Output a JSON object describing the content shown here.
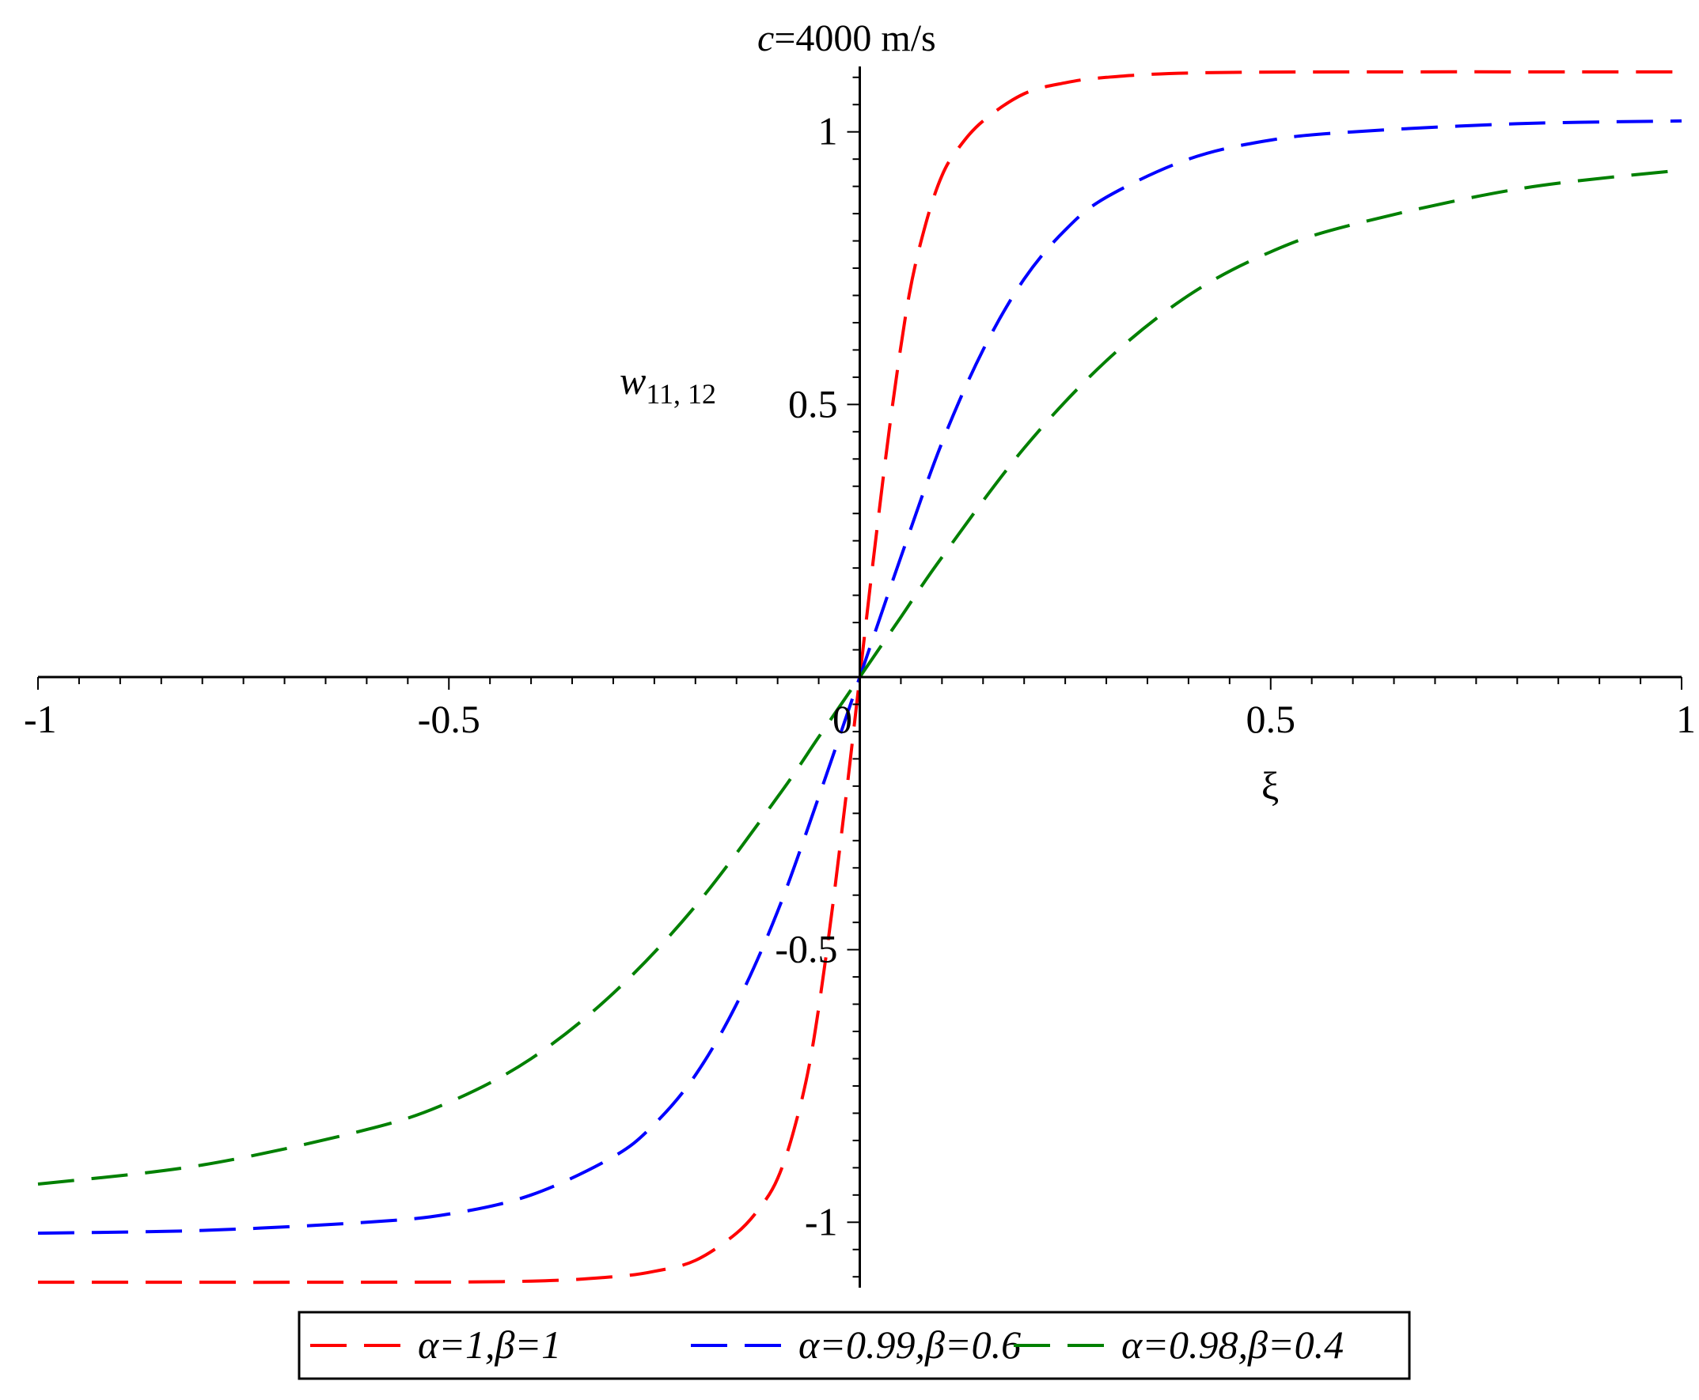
{
  "chart_data": {
    "type": "line",
    "title_italic": "c",
    "title_rest": "=4000 m/s",
    "xlabel": "ξ",
    "ylabel_main": "w",
    "ylabel_sub": "11, 12",
    "xlim": [
      -1,
      1
    ],
    "ylim": [
      -1.12,
      1.12
    ],
    "xticks": [
      {
        "value": -1,
        "label": "-1"
      },
      {
        "value": -0.5,
        "label": "-0.5"
      },
      {
        "value": 0,
        "label": "0"
      },
      {
        "value": 0.5,
        "label": "0.5"
      },
      {
        "value": 1,
        "label": "1"
      }
    ],
    "yticks": [
      {
        "value": -1,
        "label": "-1"
      },
      {
        "value": -0.5,
        "label": "-0.5"
      },
      {
        "value": 0.5,
        "label": "0.5"
      },
      {
        "value": 1,
        "label": "1"
      }
    ],
    "grid": false,
    "legend_position": "bottom-center",
    "series": [
      {
        "name": "α=1,β=1",
        "color": "#ff0000",
        "dash": "long-dash",
        "x": [
          -1,
          -0.6,
          -0.4,
          -0.3,
          -0.25,
          -0.2,
          -0.15,
          -0.12,
          -0.1,
          -0.08,
          -0.06,
          -0.04,
          -0.02,
          0,
          0.02,
          0.04,
          0.06,
          0.08,
          0.1,
          0.12,
          0.15,
          0.2,
          0.25,
          0.3,
          0.4,
          0.6,
          1
        ],
        "values": [
          -1.11,
          -1.11,
          -1.108,
          -1.1,
          -1.09,
          -1.07,
          -1.02,
          -0.97,
          -0.92,
          -0.83,
          -0.7,
          -0.5,
          -0.26,
          0,
          0.26,
          0.5,
          0.7,
          0.83,
          0.92,
          0.97,
          1.02,
          1.07,
          1.09,
          1.1,
          1.108,
          1.11,
          1.11
        ]
      },
      {
        "name": "α=0.99,β=0.6",
        "color": "#0000ff",
        "dash": "long-dash",
        "x": [
          -1,
          -0.8,
          -0.6,
          -0.5,
          -0.4,
          -0.3,
          -0.25,
          -0.2,
          -0.15,
          -0.1,
          -0.05,
          0,
          0.05,
          0.1,
          0.15,
          0.2,
          0.25,
          0.3,
          0.4,
          0.5,
          0.6,
          0.8,
          1
        ],
        "values": [
          -1.02,
          -1.015,
          -1.0,
          -0.985,
          -0.95,
          -0.88,
          -0.82,
          -0.73,
          -0.6,
          -0.43,
          -0.22,
          0,
          0.22,
          0.43,
          0.6,
          0.73,
          0.82,
          0.88,
          0.95,
          0.985,
          1.0,
          1.015,
          1.02
        ]
      },
      {
        "name": "α=0.98,β=0.4",
        "color": "#008000",
        "dash": "long-dash",
        "x": [
          -1,
          -0.8,
          -0.6,
          -0.5,
          -0.4,
          -0.3,
          -0.2,
          -0.1,
          -0.05,
          0,
          0.05,
          0.1,
          0.2,
          0.3,
          0.4,
          0.5,
          0.6,
          0.8,
          1
        ],
        "values": [
          -0.93,
          -0.895,
          -0.83,
          -0.78,
          -0.7,
          -0.58,
          -0.42,
          -0.22,
          -0.11,
          0,
          0.11,
          0.22,
          0.42,
          0.58,
          0.7,
          0.78,
          0.83,
          0.895,
          0.93
        ]
      }
    ]
  }
}
